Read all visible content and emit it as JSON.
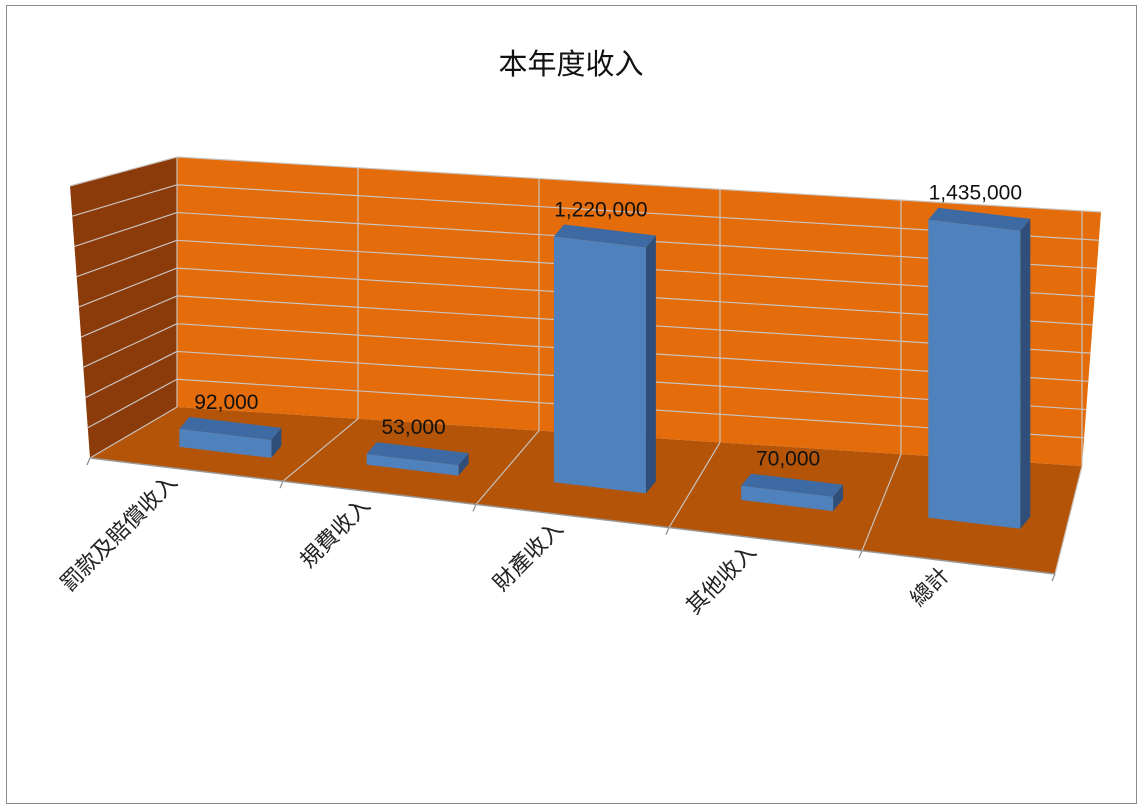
{
  "chart_data": {
    "type": "bar",
    "title": "本年度收入",
    "categories": [
      "罰款及賠償收入",
      "規費收入",
      "財產收入",
      "其他收入",
      "總計"
    ],
    "values": [
      92000,
      53000,
      1220000,
      70000,
      1435000
    ],
    "value_labels": [
      "92,000",
      "53,000",
      "1,220,000",
      "70,000",
      "1,435,000"
    ],
    "ylim": [
      0,
      1600000
    ],
    "gridlines": 9,
    "three_d": true,
    "legend": "none",
    "colors": {
      "bar_front": "#4f81bd",
      "bar_top": "#3d6aa2",
      "bar_side": "#2f4f7a",
      "back_wall": "#e46c0a",
      "side_wall": "#8b3a0a",
      "floor": "#b35408",
      "gridline": "#c9c2bd"
    }
  }
}
